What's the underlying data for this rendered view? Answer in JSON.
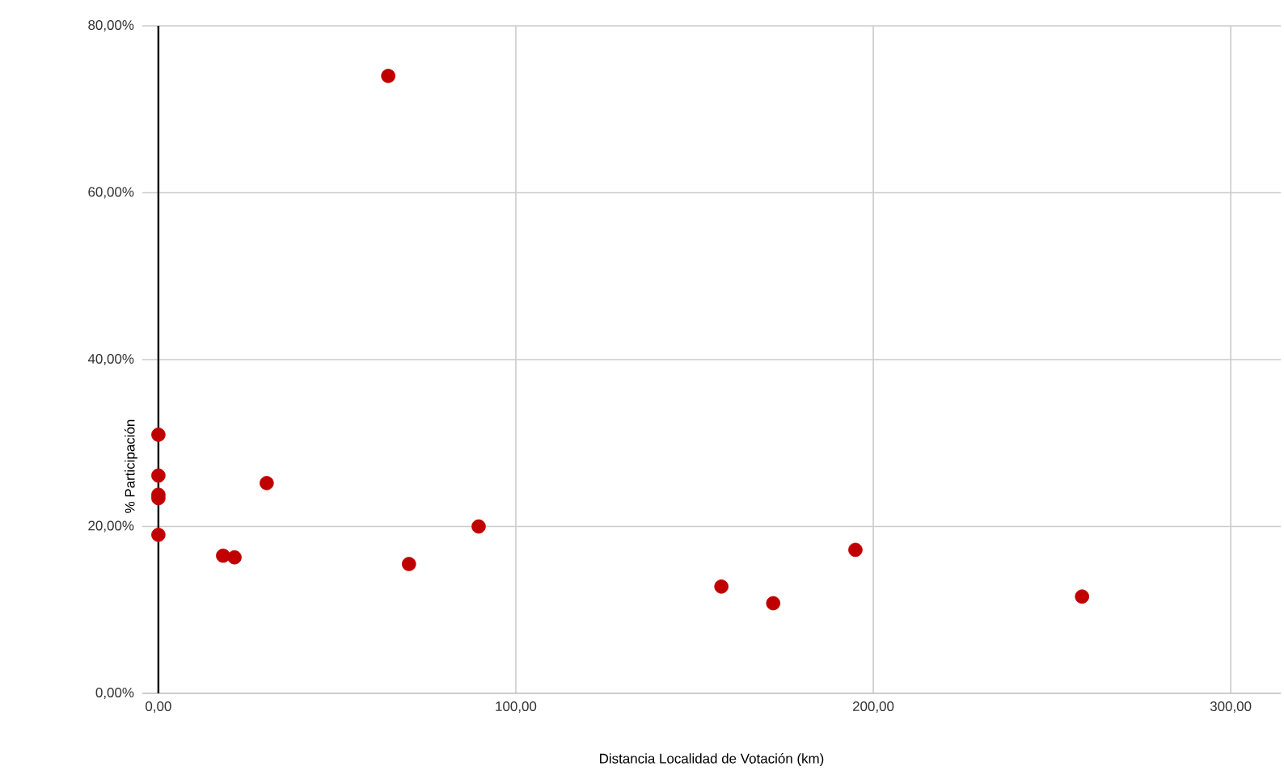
{
  "chart_data": {
    "type": "scatter",
    "xlabel": "Distancia Localidad de Votación (km)",
    "ylabel": "% Participación",
    "x": [
      0,
      0,
      0,
      0,
      0,
      18.1,
      21.3,
      30.3,
      64.3,
      70.1,
      89.6,
      157.5,
      172.0,
      195.0,
      258.4
    ],
    "values": [
      31.0,
      26.1,
      23.8,
      23.4,
      19.0,
      16.5,
      16.3,
      25.2,
      74.0,
      15.5,
      20.0,
      12.8,
      10.8,
      17.2,
      11.6
    ],
    "color": "#c00000",
    "marker": "circle",
    "grid": true,
    "xlim": [
      -4.5,
      314
    ],
    "ylim": [
      0,
      80
    ],
    "xticks": [
      {
        "value": 0,
        "label": "0,00"
      },
      {
        "value": 100,
        "label": "100,00"
      },
      {
        "value": 200,
        "label": "200,00"
      },
      {
        "value": 300,
        "label": "300,00"
      }
    ],
    "yticks": [
      {
        "value": 0,
        "label": "0,00%"
      },
      {
        "value": 20,
        "label": "20,00%"
      },
      {
        "value": 40,
        "label": "40,00%"
      },
      {
        "value": 60,
        "label": "60,00%"
      },
      {
        "value": 80,
        "label": "80,00%"
      }
    ]
  }
}
